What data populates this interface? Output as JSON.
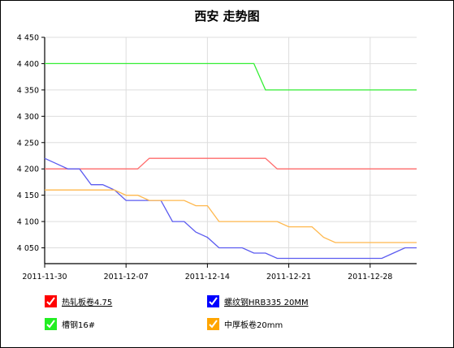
{
  "chart_data": {
    "type": "line",
    "title": "西安 走势图",
    "xlabel": "",
    "ylabel": "",
    "ylim": [
      4020,
      4450
    ],
    "xlim": [
      "2011-11-30",
      "2012-01-01"
    ],
    "yticks": [
      4050,
      4100,
      4150,
      4200,
      4250,
      4300,
      4350,
      4400,
      4450
    ],
    "ytick_labels": [
      "4 050",
      "4 100",
      "4 150",
      "4 200",
      "4 250",
      "4 300",
      "4 350",
      "4 400",
      "4 450"
    ],
    "xticks": [
      "2011-11-30",
      "2011-12-07",
      "2011-12-14",
      "2011-12-21",
      "2011-12-28"
    ],
    "grid": true,
    "series": [
      {
        "name": "热轧板卷4.75",
        "color": "#ff6b6b",
        "x": [
          "2011-11-30",
          "2011-12-01",
          "2011-12-02",
          "2011-12-03",
          "2011-12-04",
          "2011-12-05",
          "2011-12-06",
          "2011-12-07",
          "2011-12-08",
          "2011-12-09",
          "2011-12-10",
          "2011-12-11",
          "2011-12-12",
          "2011-12-13",
          "2011-12-14",
          "2011-12-15",
          "2011-12-16",
          "2011-12-17",
          "2011-12-18",
          "2011-12-19",
          "2011-12-20",
          "2011-12-21",
          "2011-12-22",
          "2011-12-23",
          "2011-12-24",
          "2011-12-25",
          "2011-12-26",
          "2011-12-27",
          "2011-12-28",
          "2011-12-29",
          "2011-12-30",
          "2011-12-31",
          "2012-01-01"
        ],
        "values": [
          4200,
          4200,
          4200,
          4200,
          4200,
          4200,
          4200,
          4200,
          4200,
          4220,
          4220,
          4220,
          4220,
          4220,
          4220,
          4220,
          4220,
          4220,
          4220,
          4220,
          4200,
          4200,
          4200,
          4200,
          4200,
          4200,
          4200,
          4200,
          4200,
          4200,
          4200,
          4200,
          4200
        ]
      },
      {
        "name": "螺纹钢HRB335 20MM",
        "color": "#5b5bf0",
        "x": [
          "2011-11-30",
          "2011-12-01",
          "2011-12-02",
          "2011-12-03",
          "2011-12-04",
          "2011-12-05",
          "2011-12-06",
          "2011-12-07",
          "2011-12-08",
          "2011-12-09",
          "2011-12-10",
          "2011-12-11",
          "2011-12-12",
          "2011-12-13",
          "2011-12-14",
          "2011-12-15",
          "2011-12-16",
          "2011-12-17",
          "2011-12-18",
          "2011-12-19",
          "2011-12-20",
          "2011-12-21",
          "2011-12-22",
          "2011-12-23",
          "2011-12-24",
          "2011-12-25",
          "2011-12-26",
          "2011-12-27",
          "2011-12-28",
          "2011-12-29",
          "2011-12-30",
          "2011-12-31",
          "2012-01-01"
        ],
        "values": [
          4220,
          4210,
          4200,
          4200,
          4170,
          4170,
          4160,
          4140,
          4140,
          4140,
          4140,
          4100,
          4100,
          4080,
          4070,
          4050,
          4050,
          4050,
          4040,
          4040,
          4030,
          4030,
          4030,
          4030,
          4030,
          4030,
          4030,
          4030,
          4030,
          4030,
          4040,
          4050,
          4050
        ]
      },
      {
        "name": "槽钢16#",
        "color": "#33ee33",
        "x": [
          "2011-11-30",
          "2011-12-01",
          "2011-12-02",
          "2011-12-03",
          "2011-12-04",
          "2011-12-05",
          "2011-12-06",
          "2011-12-07",
          "2011-12-08",
          "2011-12-09",
          "2011-12-10",
          "2011-12-11",
          "2011-12-12",
          "2011-12-13",
          "2011-12-14",
          "2011-12-15",
          "2011-12-16",
          "2011-12-17",
          "2011-12-18",
          "2011-12-19",
          "2011-12-20",
          "2011-12-21",
          "2011-12-22",
          "2011-12-23",
          "2011-12-24",
          "2011-12-25",
          "2011-12-26",
          "2011-12-27",
          "2011-12-28",
          "2011-12-29",
          "2011-12-30",
          "2011-12-31",
          "2012-01-01"
        ],
        "values": [
          4400,
          4400,
          4400,
          4400,
          4400,
          4400,
          4400,
          4400,
          4400,
          4400,
          4400,
          4400,
          4400,
          4400,
          4400,
          4400,
          4400,
          4400,
          4400,
          4350,
          4350,
          4350,
          4350,
          4350,
          4350,
          4350,
          4350,
          4350,
          4350,
          4350,
          4350,
          4350,
          4350
        ]
      },
      {
        "name": "中厚板卷20mm",
        "color": "#ffb84d",
        "x": [
          "2011-11-30",
          "2011-12-01",
          "2011-12-02",
          "2011-12-03",
          "2011-12-04",
          "2011-12-05",
          "2011-12-06",
          "2011-12-07",
          "2011-12-08",
          "2011-12-09",
          "2011-12-10",
          "2011-12-11",
          "2011-12-12",
          "2011-12-13",
          "2011-12-14",
          "2011-12-15",
          "2011-12-16",
          "2011-12-17",
          "2011-12-18",
          "2011-12-19",
          "2011-12-20",
          "2011-12-21",
          "2011-12-22",
          "2011-12-23",
          "2011-12-24",
          "2011-12-25",
          "2011-12-26",
          "2011-12-27",
          "2011-12-28",
          "2011-12-29",
          "2011-12-30",
          "2011-12-31",
          "2012-01-01"
        ],
        "values": [
          4160,
          4160,
          4160,
          4160,
          4160,
          4160,
          4160,
          4150,
          4150,
          4140,
          4140,
          4140,
          4140,
          4130,
          4130,
          4100,
          4100,
          4100,
          4100,
          4100,
          4100,
          4090,
          4090,
          4090,
          4070,
          4060,
          4060,
          4060,
          4060,
          4060,
          4060,
          4060,
          4060
        ]
      }
    ]
  },
  "legend": {
    "items": [
      {
        "label": "热轧板卷4.75",
        "color": "#ff0000",
        "underline": true
      },
      {
        "label": "螺纹钢HRB335 20MM",
        "color": "#0000ff",
        "underline": true
      },
      {
        "label": "槽钢16#",
        "color": "#22ee22",
        "underline": false
      },
      {
        "label": "中厚板卷20mm",
        "color": "#ffa500",
        "underline": false
      }
    ]
  }
}
